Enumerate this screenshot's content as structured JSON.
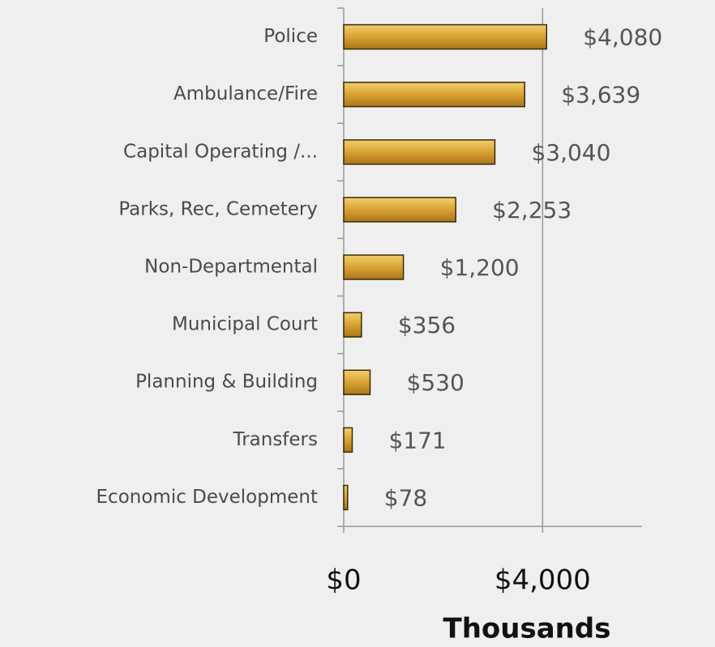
{
  "chart_data": {
    "type": "bar",
    "orientation": "horizontal",
    "categories": [
      "Police",
      "Ambulance/Fire",
      "Capital Operating /...",
      "Parks, Rec, Cemetery",
      "Non-Departmental",
      "Municipal Court",
      "Planning & Building",
      "Transfers",
      "Economic Development"
    ],
    "values": [
      4080,
      3639,
      3040,
      2253,
      1200,
      356,
      530,
      171,
      78
    ],
    "value_labels": [
      "$4,080",
      "$3,639",
      "$3,040",
      "$2,253",
      "$1,200",
      "$356",
      "$530",
      "$171",
      "$78"
    ],
    "color": "#d9a233",
    "xlim": [
      0,
      6000
    ],
    "xticks": [
      {
        "value": 0,
        "label": "$0"
      },
      {
        "value": 4000,
        "label": "$4,000"
      }
    ],
    "x_axis_label": "Thousands",
    "grid": true
  }
}
